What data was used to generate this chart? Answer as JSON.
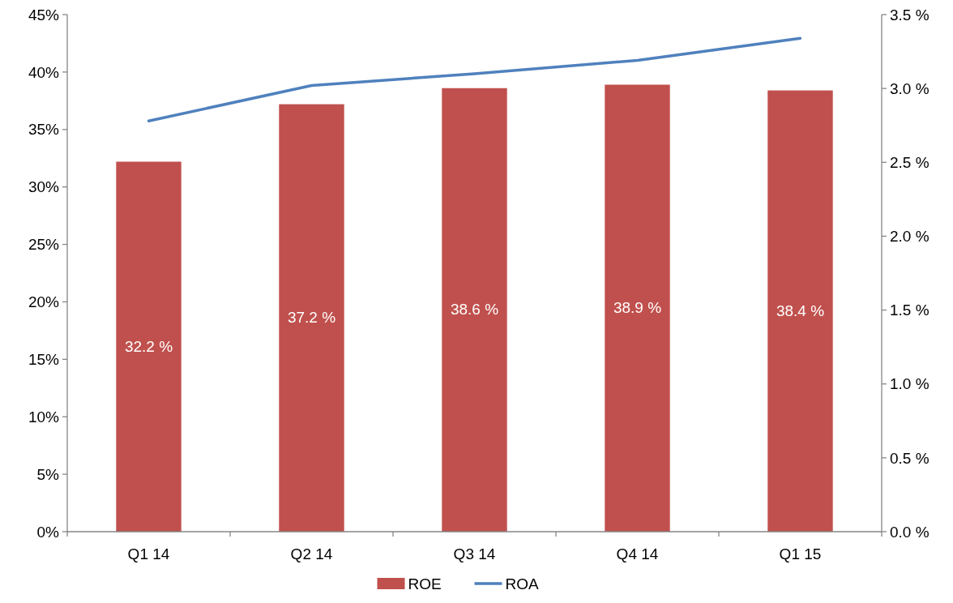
{
  "chart_data": {
    "type": "bar",
    "categories": [
      "Q1 14",
      "Q2 14",
      "Q3 14",
      "Q4 14",
      "Q1 15"
    ],
    "series": [
      {
        "name": "ROE",
        "color": "#c0504d",
        "values": [
          32.2,
          37.2,
          38.6,
          38.9,
          38.4
        ],
        "value_labels": [
          "32.2 %",
          "37.2 %",
          "38.6 %",
          "38.9 %",
          "38.4 %"
        ]
      },
      {
        "name": "ROA",
        "type": "line",
        "axis": "y2",
        "color": "#4f81bd",
        "values": [
          2.78,
          3.02,
          3.1,
          3.19,
          3.34
        ]
      }
    ],
    "ylim": [
      0,
      45
    ],
    "yticks": [
      {
        "value": 0,
        "label": "0%"
      },
      {
        "value": 5,
        "label": "5%"
      },
      {
        "value": 10,
        "label": "10%"
      },
      {
        "value": 15,
        "label": "15%"
      },
      {
        "value": 20,
        "label": "20%"
      },
      {
        "value": 25,
        "label": "25%"
      },
      {
        "value": 30,
        "label": "30%"
      },
      {
        "value": 35,
        "label": "35%"
      },
      {
        "value": 40,
        "label": "40%"
      },
      {
        "value": 45,
        "label": "45%"
      }
    ],
    "y2lim": [
      0,
      3.5
    ],
    "y2ticks": [
      {
        "value": 0,
        "label": "0.0 %"
      },
      {
        "value": 0.5,
        "label": "0.5 %"
      },
      {
        "value": 1,
        "label": "1.0 %"
      },
      {
        "value": 1.5,
        "label": "1.5 %"
      },
      {
        "value": 2,
        "label": "2.0 %"
      },
      {
        "value": 2.5,
        "label": "2.5 %"
      },
      {
        "value": 3,
        "label": "3.0 %"
      },
      {
        "value": 3.5,
        "label": "3.5 %"
      }
    ],
    "legend": "bottom",
    "grid": false,
    "marker": "none"
  }
}
